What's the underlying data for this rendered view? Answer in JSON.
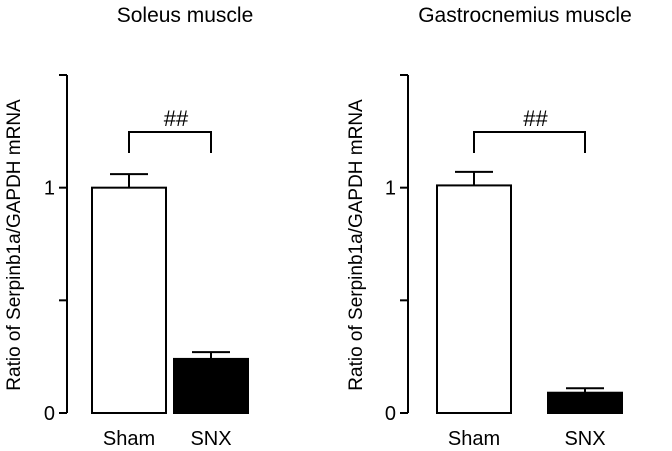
{
  "chart_data": [
    {
      "type": "bar",
      "title": "Soleus muscle",
      "ylabel": "Ratio of Serpinb1a/GAPDH mRNA",
      "xlabel": "",
      "ylim": [
        0,
        1.5
      ],
      "yticks": [
        0,
        0.5,
        1,
        1.5
      ],
      "ytick_labels": [
        "0",
        "",
        "1",
        ""
      ],
      "categories": [
        "Sham",
        "SNX"
      ],
      "values": [
        1.0,
        0.24
      ],
      "errors": [
        0.06,
        0.03
      ],
      "bar_colors": [
        "#ffffff",
        "#000000"
      ],
      "annotation": "##",
      "grid": false
    },
    {
      "type": "bar",
      "title": "Gastrocnemius muscle",
      "ylabel": "Ratio of Serpinb1a/GAPDH mRNA",
      "xlabel": "",
      "ylim": [
        0,
        1.5
      ],
      "yticks": [
        0,
        0.5,
        1,
        1.5
      ],
      "ytick_labels": [
        "0",
        "",
        "1",
        ""
      ],
      "categories": [
        "Sham",
        "SNX"
      ],
      "values": [
        1.01,
        0.09
      ],
      "errors": [
        0.06,
        0.02
      ],
      "bar_colors": [
        "#ffffff",
        "#000000"
      ],
      "annotation": "##",
      "grid": false
    }
  ]
}
